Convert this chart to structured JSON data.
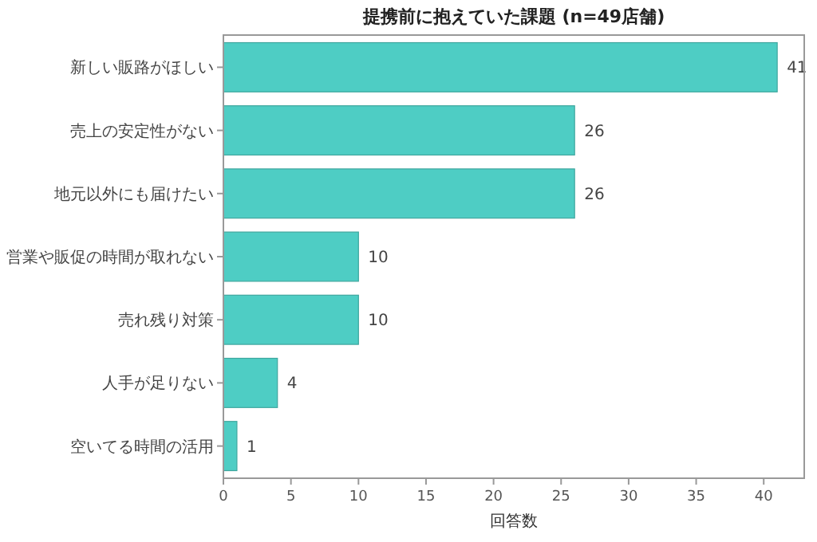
{
  "chart_data": {
    "type": "bar",
    "orientation": "horizontal",
    "title": "提携前に抱えていた課題 (n=49店舗)",
    "xlabel": "回答数",
    "categories": [
      "新しい販路がほしい",
      "売上の安定性がない",
      "地元以外にも届けたい",
      "営業や販促の時間が取れない",
      "売れ残り対策",
      "人手が足りない",
      "空いてる時間の活用"
    ],
    "values": [
      41,
      26,
      26,
      10,
      10,
      4,
      1
    ],
    "color": "#4ecdc4",
    "xlim": [
      0,
      43
    ],
    "xticks": [
      0,
      5,
      10,
      15,
      20,
      25,
      30,
      35,
      40
    ],
    "data_labels": true,
    "grid": false
  }
}
